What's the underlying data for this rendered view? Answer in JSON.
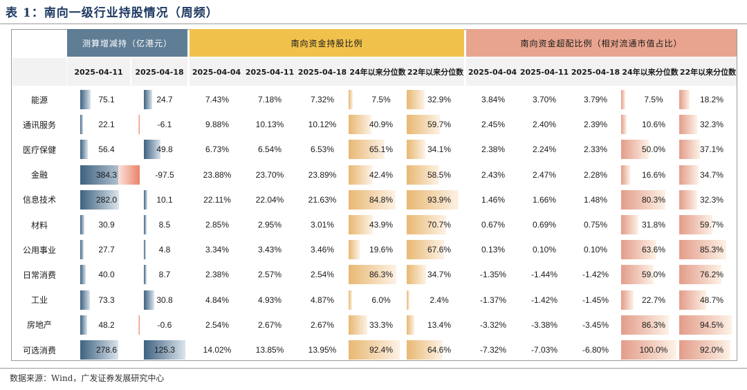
{
  "title": "表 1：南向一级行业持股情况（周频）",
  "groups": {
    "flow": "测算增减持（亿港元）",
    "holding": "南向资金持股比例",
    "excess": "南向资金超配比例（相对流通市值占比）"
  },
  "subheaders": {
    "flow": [
      "2025-04-11",
      "2025-04-18"
    ],
    "holding": [
      "2025-04-04",
      "2025-04-11",
      "2025-04-18",
      "24年以来分位数",
      "22年以来分位数"
    ],
    "excess": [
      "2025-04-04",
      "2025-04-11",
      "2025-04-18",
      "24年以来分位数",
      "22年以来分位数"
    ]
  },
  "rows": [
    {
      "industry": "能源",
      "flow": [
        "75.1",
        "24.7"
      ],
      "holding": [
        "7.43%",
        "7.18%",
        "7.32%",
        "7.5%",
        "32.9%"
      ],
      "excess": [
        "3.84%",
        "3.70%",
        "3.79%",
        "7.5%",
        "18.2%"
      ]
    },
    {
      "industry": "通讯服务",
      "flow": [
        "22.1",
        "-6.1"
      ],
      "holding": [
        "9.88%",
        "10.13%",
        "10.12%",
        "40.9%",
        "59.7%"
      ],
      "excess": [
        "2.45%",
        "2.40%",
        "2.39%",
        "10.6%",
        "32.3%"
      ]
    },
    {
      "industry": "医疗保健",
      "flow": [
        "56.4",
        "49.8"
      ],
      "holding": [
        "6.73%",
        "6.54%",
        "6.53%",
        "65.1%",
        "34.1%"
      ],
      "excess": [
        "2.38%",
        "2.24%",
        "2.33%",
        "50.0%",
        "37.1%"
      ]
    },
    {
      "industry": "金融",
      "flow": [
        "384.3",
        "-97.5"
      ],
      "holding": [
        "23.88%",
        "23.70%",
        "23.89%",
        "42.4%",
        "58.5%"
      ],
      "excess": [
        "2.43%",
        "2.47%",
        "2.28%",
        "16.6%",
        "34.7%"
      ]
    },
    {
      "industry": "信息技术",
      "flow": [
        "282.0",
        "10.1"
      ],
      "holding": [
        "22.11%",
        "22.04%",
        "21.63%",
        "84.8%",
        "93.9%"
      ],
      "excess": [
        "1.46%",
        "1.66%",
        "1.48%",
        "80.3%",
        "32.3%"
      ]
    },
    {
      "industry": "材料",
      "flow": [
        "30.9",
        "8.5"
      ],
      "holding": [
        "2.85%",
        "2.95%",
        "3.01%",
        "43.9%",
        "70.7%"
      ],
      "excess": [
        "0.67%",
        "0.69%",
        "0.75%",
        "31.8%",
        "59.7%"
      ]
    },
    {
      "industry": "公用事业",
      "flow": [
        "27.7",
        "4.8"
      ],
      "holding": [
        "3.34%",
        "3.43%",
        "3.46%",
        "19.6%",
        "67.6%"
      ],
      "excess": [
        "0.13%",
        "0.10%",
        "0.10%",
        "63.6%",
        "85.3%"
      ]
    },
    {
      "industry": "日常消费",
      "flow": [
        "40.0",
        "8.7"
      ],
      "holding": [
        "2.38%",
        "2.57%",
        "2.54%",
        "86.3%",
        "34.7%"
      ],
      "excess": [
        "-1.35%",
        "-1.44%",
        "-1.42%",
        "59.0%",
        "76.2%"
      ]
    },
    {
      "industry": "工业",
      "flow": [
        "73.3",
        "30.8"
      ],
      "holding": [
        "4.84%",
        "4.93%",
        "4.87%",
        "6.0%",
        "2.4%"
      ],
      "excess": [
        "-1.37%",
        "-1.42%",
        "-1.45%",
        "22.7%",
        "48.7%"
      ]
    },
    {
      "industry": "房地产",
      "flow": [
        "48.2",
        "-0.6"
      ],
      "holding": [
        "2.54%",
        "2.67%",
        "2.67%",
        "33.3%",
        "13.4%"
      ],
      "excess": [
        "-3.32%",
        "-3.38%",
        "-3.45%",
        "86.3%",
        "94.5%"
      ]
    },
    {
      "industry": "可选消费",
      "flow": [
        "278.6",
        "125.3"
      ],
      "holding": [
        "14.02%",
        "13.85%",
        "13.95%",
        "92.4%",
        "64.6%"
      ],
      "excess": [
        "-7.32%",
        "-7.03%",
        "-6.80%",
        "100.0%",
        "92.0%"
      ]
    }
  ],
  "source": "数据来源：Wind，广发证券发展研究中心",
  "colors": {
    "flow_header": "#5f7d95",
    "holding_header": "#f0c24b",
    "excess_header": "#e8a48e",
    "flow_bar": "#3e6280",
    "flow_bar_neg": "#e9826a",
    "holding_bar": "#e8b872",
    "excess_bar": "#e39c8a"
  }
}
